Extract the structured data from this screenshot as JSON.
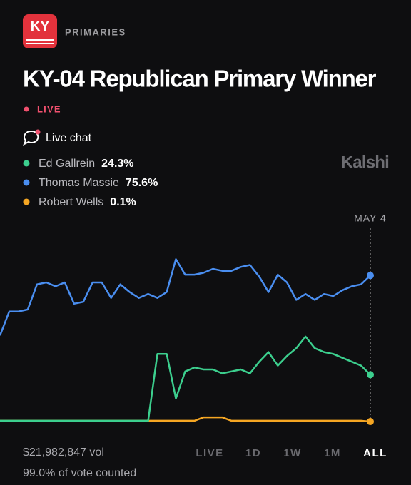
{
  "header": {
    "logo": "KY",
    "section": "PRIMARIES",
    "title": "KY-04 Republican Primary Winner",
    "status": "LIVE",
    "chat": "Live chat",
    "brand": "Kalshi"
  },
  "chart_data": {
    "type": "line",
    "categories": [
      null,
      null,
      null,
      null,
      null,
      null,
      null,
      null,
      null,
      null,
      null,
      null,
      null,
      null,
      null,
      null,
      null,
      null,
      null,
      null,
      null,
      null,
      null,
      null,
      null,
      null,
      null,
      null,
      null,
      null,
      null,
      null,
      null,
      null,
      null,
      null,
      null,
      null,
      null,
      null,
      "MAY 4"
    ],
    "ylim": [
      0,
      100
    ],
    "series": [
      {
        "name": "Ed Gallrein",
        "color": "#3ccf8e",
        "last_label": "24.3%",
        "values": [
          0.5,
          0.5,
          0.5,
          0.5,
          0.5,
          0.5,
          0.5,
          0.5,
          0.5,
          0.5,
          0.5,
          0.5,
          0.5,
          0.5,
          0.5,
          0.5,
          0.5,
          35,
          35,
          12,
          26,
          28,
          27,
          27,
          25,
          26,
          27,
          25,
          31,
          36,
          29,
          34,
          38,
          44,
          38,
          36,
          35,
          33,
          31,
          29,
          24.3
        ]
      },
      {
        "name": "Thomas Massie",
        "color": "#4a8ef0",
        "last_label": "75.6%",
        "values": [
          44.6,
          57,
          57,
          58,
          71,
          72,
          70,
          72,
          61,
          62,
          72,
          72,
          64,
          71,
          67,
          64,
          66,
          64,
          67,
          84,
          76,
          76,
          77,
          79,
          78,
          78,
          80,
          81,
          75,
          67,
          76,
          72,
          63,
          66,
          63,
          66,
          65,
          68,
          70,
          71,
          75.6
        ]
      },
      {
        "name": "Robert Wells",
        "color": "#f5a623",
        "last_label": "0.1%",
        "values": [
          0.5,
          0.5,
          0.5,
          0.5,
          0.5,
          0.5,
          0.5,
          0.5,
          0.5,
          0.5,
          0.5,
          0.5,
          0.5,
          0.5,
          0.5,
          0.5,
          0.5,
          0.5,
          0.5,
          0.5,
          0.5,
          0.5,
          2.3,
          2.3,
          2.3,
          0.5,
          0.5,
          0.5,
          0.5,
          0.5,
          0.5,
          0.5,
          0.5,
          0.5,
          0.5,
          0.5,
          0.5,
          0.5,
          0.5,
          0.5,
          0.1
        ]
      }
    ]
  },
  "footer": {
    "volume": "$21,982,847 vol",
    "counted": "99.0% of vote counted",
    "ranges": [
      "LIVE",
      "1D",
      "1W",
      "1M",
      "ALL"
    ]
  }
}
